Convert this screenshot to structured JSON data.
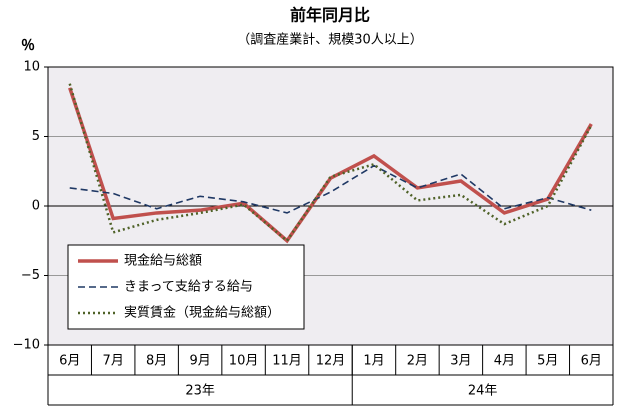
{
  "chart_data": {
    "type": "line",
    "title": "前年同月比",
    "subtitle": "（調査産業計、規模30人以上）",
    "y_label": "％",
    "categories": [
      "6月",
      "7月",
      "8月",
      "9月",
      "10月",
      "11月",
      "12月",
      "1月",
      "2月",
      "3月",
      "4月",
      "5月",
      "6月"
    ],
    "year_labels": [
      "23年",
      "24年"
    ],
    "series": [
      {
        "name": "現金給与総額",
        "color": "#c0504d",
        "style": "solid",
        "values": [
          8.5,
          -0.9,
          -0.5,
          -0.3,
          0.2,
          -2.5,
          2.0,
          3.6,
          1.3,
          1.8,
          -0.5,
          0.5,
          5.9
        ]
      },
      {
        "name": "きまって支給する給与",
        "color": "#1f3864",
        "style": "dashed",
        "values": [
          1.3,
          0.9,
          -0.2,
          0.7,
          0.3,
          -0.5,
          1.0,
          2.9,
          1.3,
          2.3,
          -0.2,
          0.6,
          -0.3
        ]
      },
      {
        "name": "実質賃金（現金給与総額）",
        "color": "#4f6228",
        "style": "dotted",
        "values": [
          8.8,
          -1.9,
          -1.0,
          -0.5,
          0.1,
          -2.5,
          2.1,
          3.0,
          0.4,
          0.8,
          -1.3,
          0.0,
          5.8
        ]
      }
    ],
    "ylim": [
      -10,
      10
    ],
    "yticks": [
      {
        "value": -10,
        "label": "−10"
      },
      {
        "value": -5,
        "label": "−5"
      },
      0,
      5,
      10
    ],
    "grid": true,
    "legend": "lower-left"
  }
}
